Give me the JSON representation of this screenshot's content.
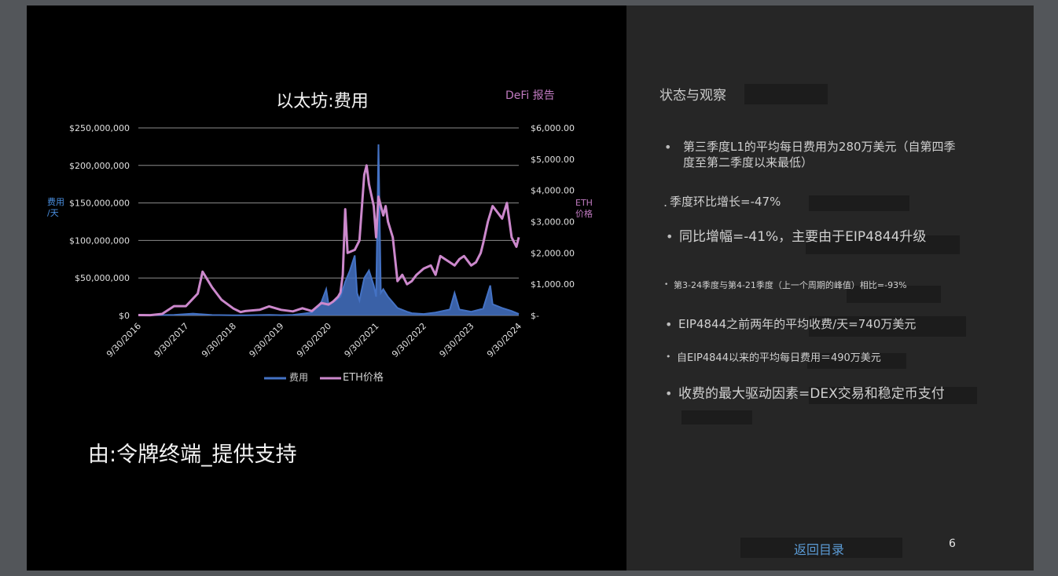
{
  "chart_data": {
    "type": "line",
    "title": "以太坊:费用",
    "source_label": "DeFi 报告",
    "ylabel_left": "费用\n/天",
    "ylabel_right": "ETH\n价格",
    "x_tick_labels": [
      "9/30/2016",
      "9/30/2017",
      "9/30/2018",
      "9/30/2019",
      "9/30/2020",
      "9/30/2021",
      "9/30/2022",
      "9/30/2023",
      "9/30/2024"
    ],
    "y_left_ticks": [
      "$0",
      "$50,000,000",
      "$100,000,000",
      "$150,000,000",
      "$200,000,000",
      "$250,000,000"
    ],
    "y_right_ticks": [
      "$-",
      "$1,000.00",
      "$2,000.00",
      "$3,000.00",
      "$4,000.00",
      "$5,000.00",
      "$6,000.00"
    ],
    "ylim_left": [
      0,
      250000000
    ],
    "ylim_right": [
      0,
      6000
    ],
    "grid": true,
    "legend_position": "bottom",
    "series": [
      {
        "name": "费用",
        "axis": "left",
        "color": "#4472c4",
        "x": [
          2016.75,
          2017.0,
          2017.5,
          2017.9,
          2018.0,
          2018.3,
          2018.75,
          2019.0,
          2019.5,
          2019.75,
          2020.0,
          2020.4,
          2020.6,
          2020.7,
          2020.75,
          2020.9,
          2021.0,
          2021.1,
          2021.2,
          2021.3,
          2021.35,
          2021.4,
          2021.5,
          2021.6,
          2021.7,
          2021.75,
          2021.8,
          2021.85,
          2021.9,
          2022.0,
          2022.2,
          2022.4,
          2022.5,
          2022.75,
          2023.0,
          2023.3,
          2023.4,
          2023.5,
          2023.75,
          2024.0,
          2024.15,
          2024.2,
          2024.4,
          2024.6,
          2024.75
        ],
        "values": [
          100000,
          200000,
          800000,
          2500000,
          2000000,
          600000,
          300000,
          300000,
          800000,
          400000,
          700000,
          4000000,
          18000000,
          35000000,
          15000000,
          20000000,
          25000000,
          45000000,
          60000000,
          80000000,
          30000000,
          20000000,
          50000000,
          60000000,
          40000000,
          25000000,
          228000000,
          30000000,
          35000000,
          25000000,
          10000000,
          5000000,
          3000000,
          2000000,
          4000000,
          8000000,
          30000000,
          8000000,
          5000000,
          9000000,
          40000000,
          15000000,
          10000000,
          6000000,
          2000000
        ]
      },
      {
        "name": "ETH价格",
        "axis": "right",
        "color": "#cc88cc",
        "x": [
          2016.75,
          2017.0,
          2017.25,
          2017.5,
          2017.75,
          2018.0,
          2018.1,
          2018.3,
          2018.5,
          2018.75,
          2018.9,
          2019.0,
          2019.3,
          2019.5,
          2019.75,
          2020.0,
          2020.2,
          2020.4,
          2020.6,
          2020.75,
          2020.85,
          2020.95,
          2021.0,
          2021.05,
          2021.1,
          2021.15,
          2021.3,
          2021.4,
          2021.5,
          2021.55,
          2021.6,
          2021.7,
          2021.75,
          2021.8,
          2021.9,
          2021.95,
          2022.0,
          2022.1,
          2022.2,
          2022.3,
          2022.4,
          2022.5,
          2022.6,
          2022.75,
          2022.9,
          2023.0,
          2023.1,
          2023.2,
          2023.3,
          2023.4,
          2023.5,
          2023.6,
          2023.75,
          2023.85,
          2023.95,
          2024.0,
          2024.1,
          2024.2,
          2024.3,
          2024.4,
          2024.5,
          2024.6,
          2024.7,
          2024.75
        ],
        "values": [
          13,
          10,
          50,
          300,
          300,
          700,
          1400,
          900,
          500,
          220,
          110,
          140,
          180,
          290,
          180,
          130,
          230,
          140,
          400,
          350,
          450,
          600,
          730,
          1300,
          3400,
          2000,
          2100,
          2400,
          4500,
          4800,
          4200,
          3500,
          2500,
          3800,
          3200,
          3500,
          3000,
          2500,
          1100,
          1300,
          1000,
          1100,
          1300,
          1500,
          1600,
          1300,
          1900,
          1800,
          1700,
          1600,
          1800,
          1900,
          1600,
          1700,
          2000,
          2300,
          3000,
          3500,
          3300,
          3100,
          3600,
          2500,
          2200,
          2500
        ]
      }
    ]
  },
  "legend": {
    "fees": "费用",
    "eth_price": "ETH价格"
  },
  "credit": "由:令牌终端_提供支持",
  "panel": {
    "title": "状态与观察",
    "points": [
      {
        "bullet": "•",
        "text": "第三季度L1的平均每日费用为280万美元（自第四季度至第二季度以来最低）"
      },
      {
        "bullet": ".",
        "text": "季度环比增长=-47%"
      },
      {
        "bullet": "•",
        "text": "同比增幅=-41%，主要由于EIP4844升级"
      },
      {
        "bullet": "•",
        "text": "第3-24季度与第4-21季度（上一个周期的峰值）相比=-93%"
      },
      {
        "bullet": "•",
        "text": "EIP4844之前两年的平均收费/天=740万美元"
      },
      {
        "bullet": "•",
        "text": "自EIP4844以来的平均每日费用＝490万美元"
      },
      {
        "bullet": "•",
        "text": "收费的最大驱动因素=DEX交易和稳定币支付"
      }
    ],
    "back_link": "返回目录",
    "page_number": "6"
  }
}
